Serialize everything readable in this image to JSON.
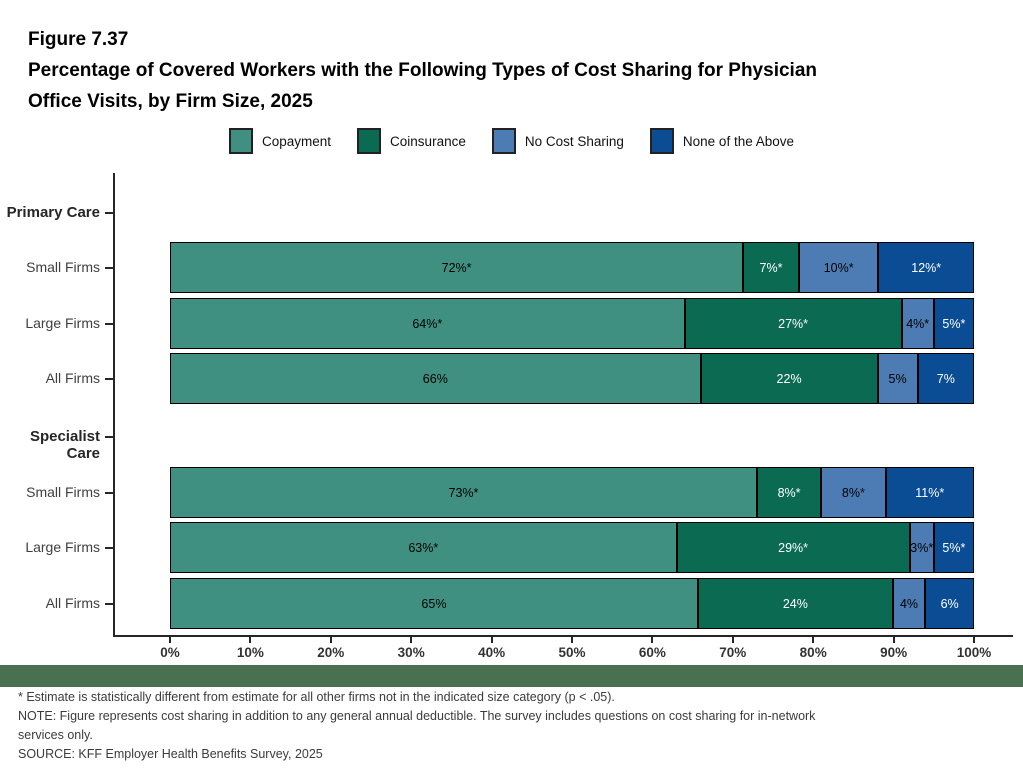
{
  "page": {
    "background": "#ffffff",
    "accent_strip_color": "#4A7052"
  },
  "title": {
    "figure_label": "Figure 7.37",
    "line1": "Percentage of Covered Workers with the Following Types of Cost Sharing for Physician",
    "line2": "Office Visits, by Firm Size, 2025"
  },
  "chart_data": {
    "type": "bar",
    "orientation": "horizontal",
    "stacked": true,
    "grid": false,
    "legend_position": "top-center",
    "xlim": [
      0,
      100
    ],
    "x_ticks": [
      "0%",
      "10%",
      "20%",
      "30%",
      "40%",
      "50%",
      "60%",
      "70%",
      "80%",
      "90%",
      "100%"
    ],
    "series": [
      {
        "name": "Copayment",
        "color": "#3F9080",
        "label_color": "#000000"
      },
      {
        "name": "Coinsurance",
        "color": "#0A6B52",
        "label_color": "#ffffff"
      },
      {
        "name": "No Cost Sharing",
        "color": "#4D7CB5",
        "label_color": "#000000"
      },
      {
        "name": "None of the Above",
        "color": "#0A4D94",
        "label_color": "#ffffff"
      }
    ],
    "groups": [
      {
        "label": "Primary Care",
        "rows": [
          {
            "label": "Small Firms",
            "values": [
              72,
              7,
              10,
              12
            ],
            "value_labels": [
              "72%*",
              "7%*",
              "10%*",
              "12%*"
            ]
          },
          {
            "label": "Large Firms",
            "values": [
              64,
              27,
              4,
              5
            ],
            "value_labels": [
              "64%*",
              "27%*",
              "4%*",
              "5%*"
            ]
          },
          {
            "label": "All Firms",
            "values": [
              66,
              22,
              5,
              7
            ],
            "value_labels": [
              "66%",
              "22%",
              "5%",
              "7%"
            ]
          }
        ]
      },
      {
        "label": "Specialist Care",
        "rows": [
          {
            "label": "Small Firms",
            "values": [
              73,
              8,
              8,
              11
            ],
            "value_labels": [
              "73%*",
              "8%*",
              "8%*",
              "11%*"
            ]
          },
          {
            "label": "Large Firms",
            "values": [
              63,
              29,
              3,
              5
            ],
            "value_labels": [
              "63%*",
              "29%*",
              "3%*",
              "5%*"
            ]
          },
          {
            "label": "All Firms",
            "values": [
              65,
              24,
              4,
              6
            ],
            "value_labels": [
              "65%",
              "24%",
              "4%",
              "6%"
            ]
          }
        ]
      }
    ]
  },
  "footnotes": {
    "lines": [
      "* Estimate is statistically different from estimate for all other firms not in the indicated size category (p < .05).",
      "NOTE: Figure represents cost sharing in addition to any general annual deductible. The survey includes questions on cost sharing for in-network",
      "services only.",
      "SOURCE: KFF Employer Health Benefits Survey, 2025"
    ]
  }
}
